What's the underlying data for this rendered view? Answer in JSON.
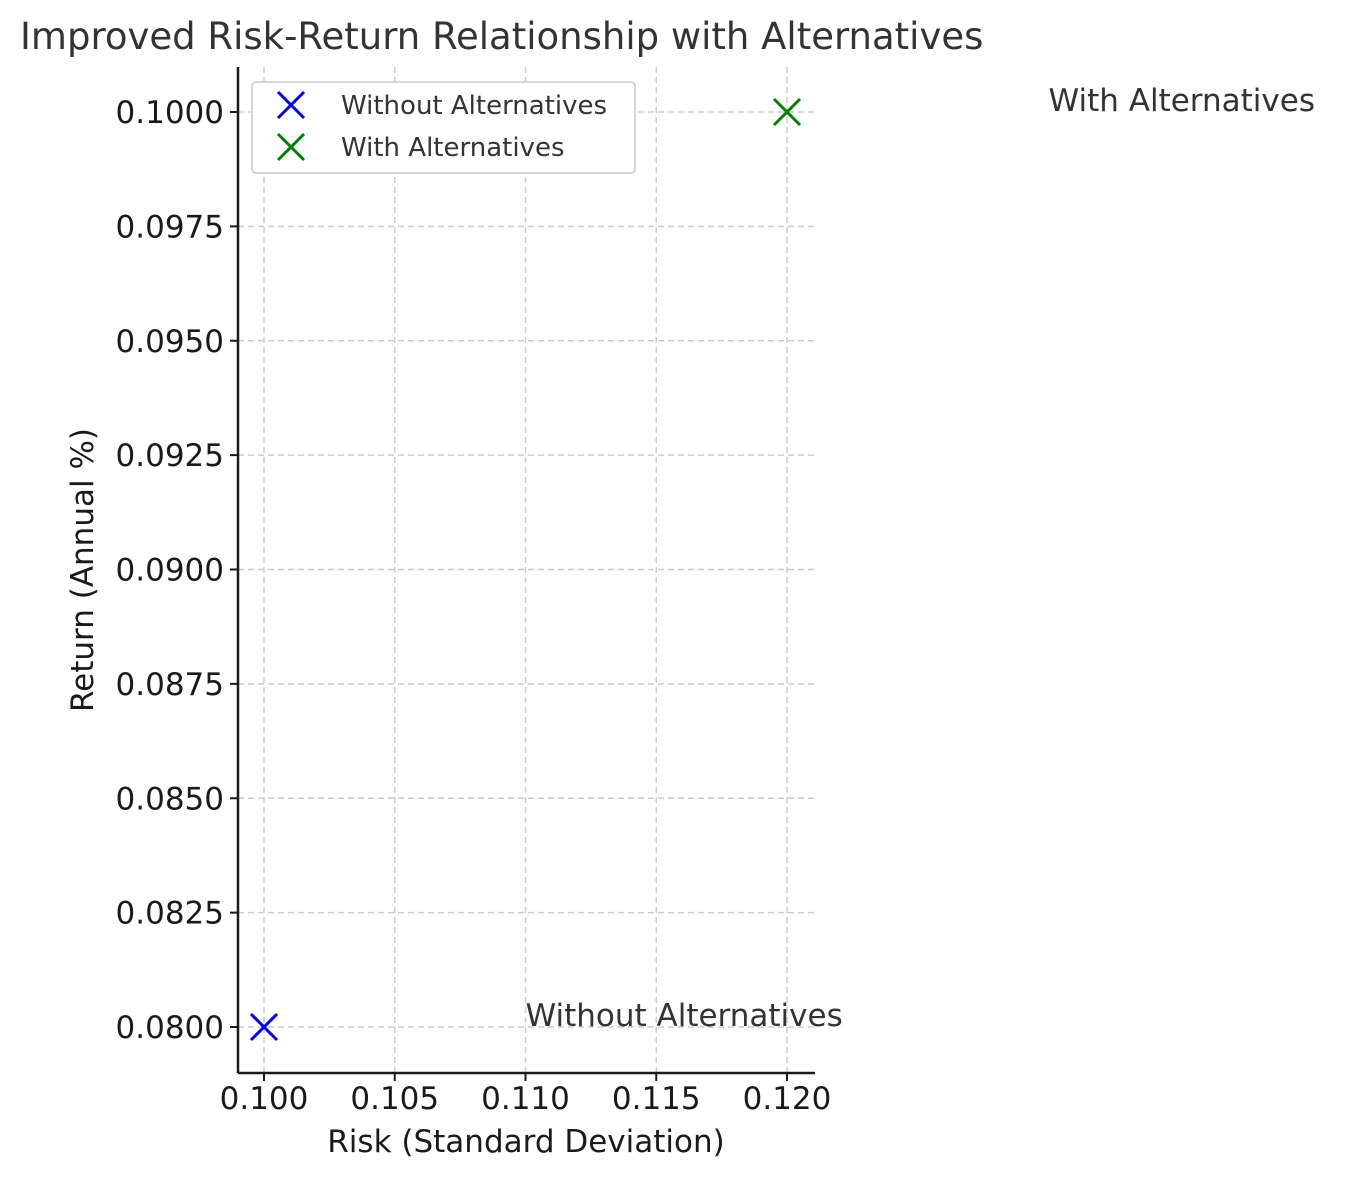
{
  "chart_data": {
    "type": "scatter",
    "title": "Improved Risk-Return Relationship with Alternatives",
    "xlabel": "Risk (Standard Deviation)",
    "ylabel": "Return (Annual %)",
    "xlim": [
      0.099,
      0.121
    ],
    "ylim": [
      0.079,
      0.101
    ],
    "xticks": [
      {
        "value": 0.1,
        "label": "0.100"
      },
      {
        "value": 0.105,
        "label": "0.105"
      },
      {
        "value": 0.11,
        "label": "0.110"
      },
      {
        "value": 0.115,
        "label": "0.115"
      },
      {
        "value": 0.12,
        "label": "0.120"
      }
    ],
    "yticks": [
      {
        "value": 0.08,
        "label": "0.0800"
      },
      {
        "value": 0.0825,
        "label": "0.0825"
      },
      {
        "value": 0.085,
        "label": "0.0850"
      },
      {
        "value": 0.0875,
        "label": "0.0875"
      },
      {
        "value": 0.09,
        "label": "0.0900"
      },
      {
        "value": 0.0925,
        "label": "0.0925"
      },
      {
        "value": 0.095,
        "label": "0.0950"
      },
      {
        "value": 0.0975,
        "label": "0.0975"
      },
      {
        "value": 0.1,
        "label": "0.1000"
      }
    ],
    "grid": true,
    "legend_position": "upper-left",
    "series": [
      {
        "name": "Without Alternatives",
        "marker": "x",
        "color": "#0000ee",
        "points": [
          {
            "x": 0.1,
            "y": 0.08
          }
        ]
      },
      {
        "name": "With Alternatives",
        "marker": "x",
        "color": "#008000",
        "points": [
          {
            "x": 0.12,
            "y": 0.1
          }
        ]
      }
    ],
    "annotations": [
      {
        "text": "Without Alternatives",
        "x": 0.11,
        "y": 0.08
      },
      {
        "text": "With Alternatives",
        "x": 0.13,
        "y": 0.1
      }
    ]
  }
}
